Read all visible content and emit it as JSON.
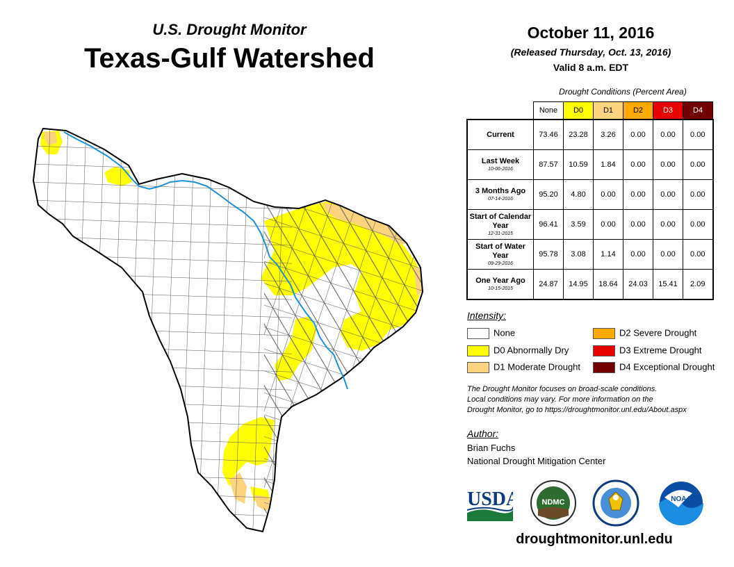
{
  "header": {
    "subtitle": "U.S. Drought Monitor",
    "title": "Texas-Gulf Watershed",
    "date": "October 11, 2016",
    "released": "(Released Thursday, Oct. 13, 2016)",
    "valid": "Valid 8 a.m. EDT"
  },
  "table": {
    "caption": "Drought Conditions (Percent Area)",
    "columns": [
      {
        "label": "None",
        "color": "#ffffff"
      },
      {
        "label": "D0",
        "color": "#ffff00"
      },
      {
        "label": "D1",
        "color": "#fcd37f"
      },
      {
        "label": "D2",
        "color": "#ffaa00"
      },
      {
        "label": "D3",
        "color": "#e60000"
      },
      {
        "label": "D4",
        "color": "#730000"
      }
    ],
    "rows": [
      {
        "label": "Current",
        "sub": "",
        "values": [
          "73.46",
          "23.28",
          "3.26",
          "0.00",
          "0.00",
          "0.00"
        ]
      },
      {
        "label": "Last Week",
        "sub": "10-06-2016",
        "values": [
          "87.57",
          "10.59",
          "1.84",
          "0.00",
          "0.00",
          "0.00"
        ]
      },
      {
        "label": "3 Months Ago",
        "sub": "07-14-2016",
        "values": [
          "95.20",
          "4.80",
          "0.00",
          "0.00",
          "0.00",
          "0.00"
        ]
      },
      {
        "label": "Start of Calendar Year",
        "sub": "12-31-2015",
        "values": [
          "96.41",
          "3.59",
          "0.00",
          "0.00",
          "0.00",
          "0.00"
        ]
      },
      {
        "label": "Start of Water Year",
        "sub": "09-29-2016",
        "values": [
          "95.78",
          "3.08",
          "1.14",
          "0.00",
          "0.00",
          "0.00"
        ]
      },
      {
        "label": "One Year Ago",
        "sub": "10-15-2015",
        "values": [
          "24.87",
          "14.95",
          "18.64",
          "24.03",
          "15.41",
          "2.09"
        ]
      }
    ]
  },
  "legend": {
    "title": "Intensity:",
    "items": [
      {
        "label": "None",
        "color": "#ffffff"
      },
      {
        "label": "D0 Abnormally Dry",
        "color": "#ffff00"
      },
      {
        "label": "D1 Moderate Drought",
        "color": "#fcd37f"
      },
      {
        "label": "D2 Severe Drought",
        "color": "#ffaa00"
      },
      {
        "label": "D3 Extreme Drought",
        "color": "#e60000"
      },
      {
        "label": "D4 Exceptional Drought",
        "color": "#730000"
      }
    ]
  },
  "note": {
    "line1": "The Drought Monitor focuses on broad-scale conditions.",
    "line2": "Local conditions may vary. For more information on the",
    "line3": "Drought Monitor, go to https://droughtmonitor.unl.edu/About.aspx"
  },
  "author": {
    "label": "Author:",
    "name": "Brian Fuchs",
    "org": "National Drought Mitigation Center"
  },
  "logos": {
    "usda": "USDA",
    "ndmc": "NDMC",
    "noaa": "NOAA"
  },
  "website": "droughtmonitor.unl.edu",
  "colors": {
    "river": "#1e90d6",
    "d0": "#ffff00",
    "d1": "#fcd37f",
    "county_line": "#555555"
  }
}
